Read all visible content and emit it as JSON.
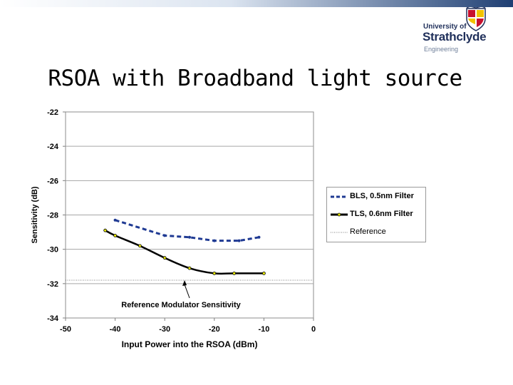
{
  "slide": {
    "title": "RSOA with Broadband light source"
  },
  "logo": {
    "line1": "University of",
    "line2": "Strathclyde",
    "line3": "Engineering"
  },
  "chart_data": {
    "type": "line",
    "xlabel": "Input Power into the RSOA (dBm)",
    "ylabel": "Sensitivity (dB)",
    "xlim": [
      -50,
      0
    ],
    "ylim": [
      -34,
      -22
    ],
    "xticks": [
      "-50",
      "-40",
      "-30",
      "-20",
      "-10",
      "0"
    ],
    "yticks": [
      "-22",
      "-24",
      "-26",
      "-28",
      "-30",
      "-32",
      "-34"
    ],
    "grid": "horizontal",
    "legend_position": "right",
    "series": [
      {
        "name": "BLS, 0.5nm Filter",
        "style": "dashed",
        "color": "#1f3a93",
        "points": [
          [
            -40,
            -28.3
          ],
          [
            -30,
            -29.2
          ],
          [
            -25,
            -29.3
          ],
          [
            -20,
            -29.5
          ],
          [
            -15,
            -29.5
          ],
          [
            -11,
            -29.3
          ]
        ]
      },
      {
        "name": "TLS, 0.6nm Filter",
        "style": "solid",
        "color": "#000000",
        "points": [
          [
            -42,
            -28.9
          ],
          [
            -40,
            -29.2
          ],
          [
            -35,
            -29.8
          ],
          [
            -30,
            -30.5
          ],
          [
            -25,
            -31.1
          ],
          [
            -20,
            -31.4
          ],
          [
            -16,
            -31.4
          ],
          [
            -10,
            -31.4
          ]
        ]
      },
      {
        "name": "Reference",
        "style": "dotted",
        "color": "#7f7f7f",
        "y": -31.8
      }
    ],
    "annotation": {
      "text": "Reference Modulator Sensitivity",
      "arrow_to": [
        -26,
        -31.8
      ]
    }
  }
}
